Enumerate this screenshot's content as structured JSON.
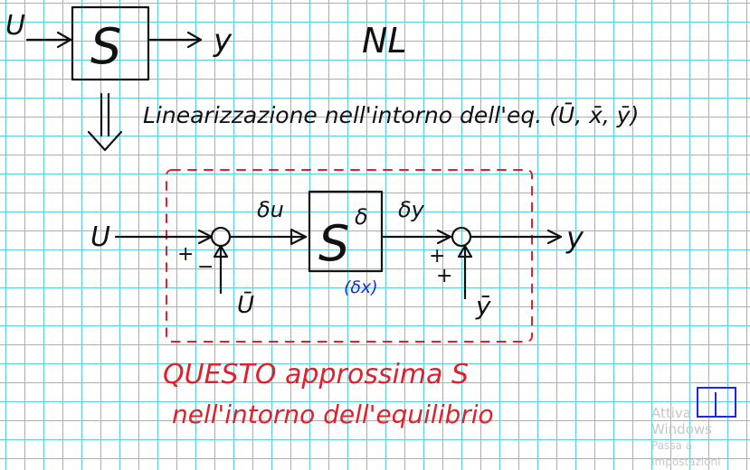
{
  "top": {
    "input_label": "U",
    "block_label": "S",
    "output_label": "y",
    "nonlinear_label": "NL"
  },
  "linearization_note": "Linearizzazione nell'intorno dell'eq. (Ū, x̄, ȳ)",
  "linear_diagram": {
    "input_label": "U",
    "delta_u_label": "δu",
    "block_label": "S",
    "block_superscript": "δ",
    "state_label": "(δx)",
    "delta_y_label": "δy",
    "output_label": "y",
    "sum1_plus": "+",
    "sum1_minus": "−",
    "u_bar_label": "Ū",
    "sum2_plus_top": "+",
    "sum2_plus_bottom": "+",
    "y_bar_label": "ȳ"
  },
  "red_note_line1": "QUESTO approssima S",
  "red_note_line2": "nell'intorno dell'equilibrio",
  "watermark": {
    "line1": "Attiva Windows",
    "line2": "Passa a Impostazioni"
  },
  "colors": {
    "grid": "#5ad0dc",
    "ink": "#111111",
    "red": "#e0202a",
    "blue": "#1a2bd8"
  }
}
